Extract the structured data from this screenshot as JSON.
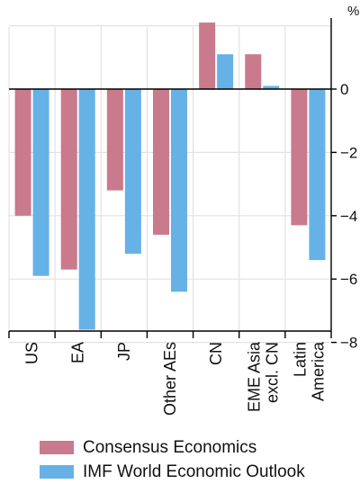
{
  "chart_data": {
    "type": "bar",
    "unit": "%",
    "categories": [
      {
        "label": "US"
      },
      {
        "label": "EA"
      },
      {
        "label": "JP"
      },
      {
        "label": "Other AEs"
      },
      {
        "label": "CN"
      },
      {
        "label": "EME Asia",
        "label2": "excl. CN"
      },
      {
        "label": "Latin",
        "label2": "America"
      }
    ],
    "series": [
      {
        "name": "Consensus Economics",
        "color": "#c97a8c",
        "values": [
          -4.0,
          -5.7,
          -3.2,
          -4.6,
          2.1,
          1.1,
          -4.3
        ]
      },
      {
        "name": "IMF World Economic Outlook",
        "color": "#66b2e6",
        "values": [
          -5.9,
          -7.6,
          -5.2,
          -6.4,
          1.1,
          0.1,
          -5.4
        ]
      }
    ],
    "ylim": [
      -8,
      2
    ],
    "yticks": [
      0,
      -2,
      -4,
      -6,
      -8
    ],
    "grid": true,
    "legend_position": "bottom"
  }
}
